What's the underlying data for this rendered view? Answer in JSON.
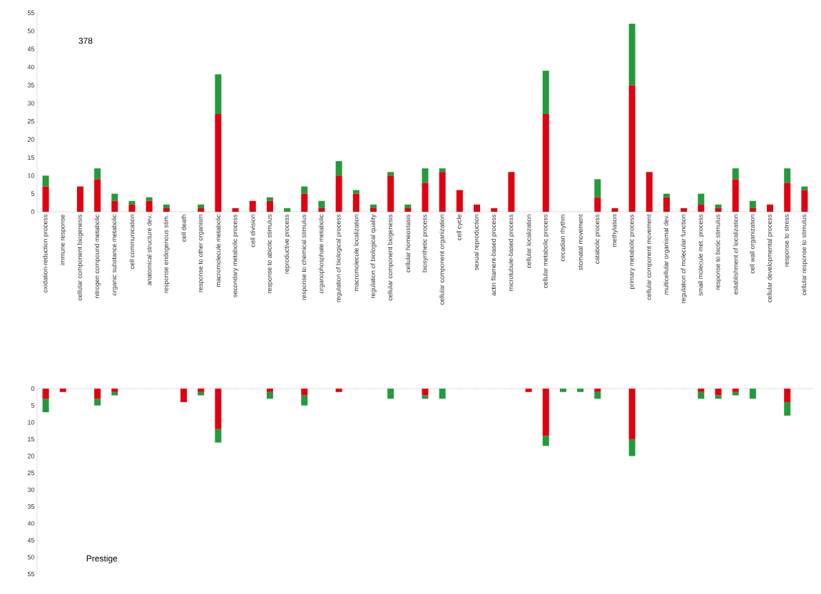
{
  "chart_data": [
    {
      "type": "bar",
      "stacked": true,
      "categories": [
        "oxidation-reduction process",
        "immune response",
        "cellular component biogenesis",
        "nitrogen compound metabolic",
        "organic substance metabolic",
        "cell communication",
        "anatomical structure dev.",
        "response endogenous stim.",
        "cell death",
        "response to other organism",
        "macromolecule metabolic",
        "secondary metabolic process",
        "cell division",
        "response to abiotic stimulus",
        "reproductive process",
        "response to chemical stimulus",
        "organophosphate metabolic",
        "regulation of biological process",
        "macromolecule localization",
        "regulation of biological quality",
        "cellular component  biogenesis",
        "cellular homeostasis",
        "biosynthetic process",
        "cellular component organization",
        "cell cycle",
        "sexual reproduction",
        "actin filament-based process",
        "microtubule-based process",
        "cellular localization",
        "cellular metabolic process",
        "circadian rhythm",
        "stomatal movement",
        "catabolic process",
        "methylation",
        "primary metabolic process",
        "cellular component movement",
        "multicellular organismal dev.",
        "regulation of molecular function",
        "small molecule met. process",
        "response to biotic stimulus",
        "establishment of localization",
        "cell wall organization",
        "cellular developmental process",
        "response to stress",
        "cellular response to stimulus"
      ],
      "series": [
        {
          "color": "#e0000f",
          "values": [
            7,
            0,
            7,
            9,
            3,
            2,
            3,
            1,
            0,
            1,
            27,
            1,
            3,
            3,
            0,
            5,
            1,
            10,
            5,
            1,
            10,
            1,
            8,
            11,
            6,
            2,
            1,
            11,
            0,
            27,
            0,
            0,
            4,
            1,
            35,
            11,
            4,
            1,
            2,
            1,
            9,
            1,
            2,
            8,
            6
          ]
        },
        {
          "color": "#239b3c",
          "values": [
            3,
            0,
            0,
            3,
            2,
            1,
            1,
            1,
            0,
            1,
            11,
            0,
            0,
            1,
            1,
            2,
            2,
            4,
            1,
            1,
            1,
            1,
            4,
            1,
            0,
            0,
            0,
            0,
            0,
            12,
            0,
            0,
            5,
            0,
            17,
            0,
            1,
            0,
            3,
            1,
            3,
            2,
            0,
            4,
            1
          ]
        }
      ],
      "ylim": [
        0,
        55
      ],
      "yticks": [
        0,
        5,
        10,
        15,
        20,
        25,
        30,
        35,
        40,
        45,
        50,
        55
      ],
      "annotations": [
        "378"
      ]
    },
    {
      "type": "bar",
      "stacked": true,
      "tick_labels": "y",
      "categories": [
        null,
        null,
        null,
        null,
        null,
        null,
        null,
        null,
        null,
        null,
        null,
        null,
        null,
        null,
        null,
        null,
        null,
        null,
        null,
        null,
        null,
        null,
        null,
        null,
        null,
        null,
        null,
        null,
        null,
        null,
        null,
        null,
        null,
        null,
        null,
        null,
        null,
        null,
        null,
        null,
        null,
        null,
        null,
        null,
        null
      ],
      "series": [
        {
          "color": "#e0000f",
          "values": [
            3,
            1,
            0,
            3,
            1,
            0,
            0,
            0,
            4,
            1,
            12,
            0,
            0,
            1,
            0,
            2,
            0,
            1,
            0,
            0,
            0,
            0,
            2,
            0,
            0,
            0,
            0,
            0,
            1,
            14,
            0,
            0,
            1,
            0,
            15,
            0,
            0,
            0,
            1,
            2,
            1,
            0,
            0,
            4,
            0
          ]
        },
        {
          "color": "#239b3c",
          "values": [
            4,
            0,
            0,
            2,
            1,
            0,
            0,
            0,
            0,
            1,
            4,
            0,
            0,
            2,
            0,
            3,
            0,
            0,
            0,
            0,
            3,
            0,
            1,
            3,
            0,
            0,
            0,
            0,
            0,
            3,
            1,
            1,
            2,
            0,
            5,
            0,
            0,
            0,
            2,
            1,
            1,
            3,
            0,
            4,
            0
          ]
        }
      ],
      "ylim": [
        55,
        0
      ],
      "yticks": [
        0,
        5,
        10,
        15,
        20,
        25,
        30,
        35,
        40,
        45,
        50,
        55
      ],
      "annotations": [
        "Prestige"
      ]
    }
  ]
}
